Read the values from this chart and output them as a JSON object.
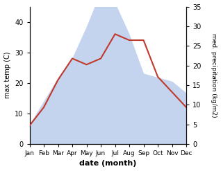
{
  "months": [
    "Jan",
    "Feb",
    "Mar",
    "Apr",
    "May",
    "Jun",
    "Jul",
    "Aug",
    "Sep",
    "Oct",
    "Nov",
    "Dec"
  ],
  "temperature": [
    6,
    12,
    21,
    28,
    26,
    28,
    36,
    34,
    34,
    22,
    17,
    12
  ],
  "precipitation": [
    5,
    11,
    17,
    22,
    30,
    39,
    36,
    28,
    18,
    17,
    16,
    13
  ],
  "temp_color": "#c0392b",
  "precip_color_fill": "#c5d4ee",
  "temp_ylim": [
    0,
    45
  ],
  "precip_ylim": [
    0,
    35
  ],
  "temp_yticks": [
    0,
    10,
    20,
    30,
    40
  ],
  "precip_yticks": [
    0,
    5,
    10,
    15,
    20,
    25,
    30,
    35
  ],
  "ylabel_left": "max temp (C)",
  "ylabel_right": "med. precipitation (kg/m2)",
  "xlabel": "date (month)",
  "figsize": [
    3.18,
    2.47
  ],
  "dpi": 100
}
